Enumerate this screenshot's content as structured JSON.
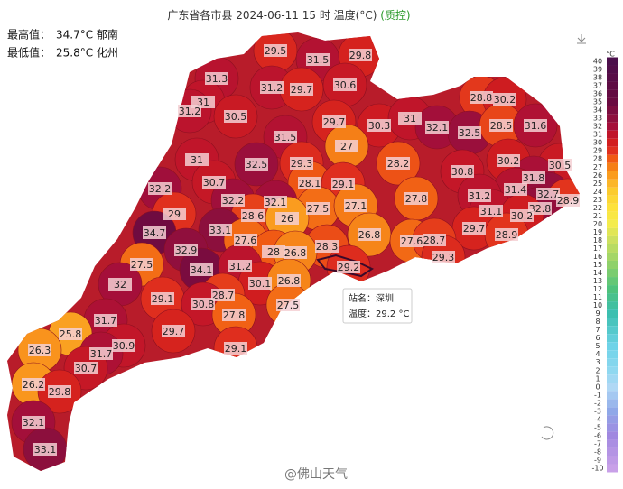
{
  "title": "广东省各市县 2024-06-11 15 时 温度(°C)",
  "title_qc": "(质控)",
  "max": {
    "label": "最高值：",
    "text": "34.7°C 郁南"
  },
  "min": {
    "label": "最低值：",
    "text": "25.8°C 化州"
  },
  "legend": {
    "unit": "°C",
    "ticks": [
      40,
      39,
      38,
      37,
      36,
      35,
      34,
      33,
      32,
      31,
      30,
      29,
      28,
      27,
      26,
      25,
      24,
      23,
      22,
      21,
      20,
      19,
      18,
      17,
      16,
      15,
      14,
      13,
      12,
      11,
      10,
      9,
      8,
      7,
      6,
      5,
      4,
      3,
      2,
      1,
      0,
      -1,
      -2,
      -3,
      -4,
      -5,
      -6,
      -7,
      -8,
      -9,
      -10
    ]
  },
  "stations": [
    {
      "value": 29.5
    },
    {
      "value": 31.5
    },
    {
      "value": 29.8
    },
    {
      "value": 31.3
    },
    {
      "value": 30.6
    },
    {
      "value": 28.8
    },
    {
      "value": 30.2
    },
    {
      "value": 31.2
    },
    {
      "value": 29.7
    },
    {
      "value": 31.0
    },
    {
      "value": 31.2
    },
    {
      "value": 30.5
    },
    {
      "value": 29.7
    },
    {
      "value": 30.3
    },
    {
      "value": 31.0
    },
    {
      "value": 32.1
    },
    {
      "value": 32.5
    },
    {
      "value": 28.5
    },
    {
      "value": 31.6
    },
    {
      "value": 31.5
    },
    {
      "value": 27.0
    },
    {
      "value": 31.0
    },
    {
      "value": 32.5
    },
    {
      "value": 29.3
    },
    {
      "value": 28.2
    },
    {
      "value": 30.2
    },
    {
      "value": 30.5
    },
    {
      "value": 30.8
    },
    {
      "value": 31.8
    },
    {
      "value": 28.1
    },
    {
      "value": 29.1
    },
    {
      "value": 30.7
    },
    {
      "value": 32.2
    },
    {
      "value": 31.4
    },
    {
      "value": 32.7
    },
    {
      "value": 28.9
    },
    {
      "value": 32.2
    },
    {
      "value": 32.1
    },
    {
      "value": 27.5
    },
    {
      "value": 27.1
    },
    {
      "value": 27.8
    },
    {
      "value": 31.2
    },
    {
      "value": 31.1
    },
    {
      "value": 32.8
    },
    {
      "value": 30.2
    },
    {
      "value": 29.0
    },
    {
      "value": 28.6
    },
    {
      "value": 26.0
    },
    {
      "value": 33.1
    },
    {
      "value": 26.8
    },
    {
      "value": 29.7
    },
    {
      "value": 28.9
    },
    {
      "value": 34.7
    },
    {
      "value": 27.6
    },
    {
      "value": 28.3
    },
    {
      "value": 27.6
    },
    {
      "value": 28.7
    },
    {
      "value": 32.9
    },
    {
      "value": 28.0
    },
    {
      "value": 26.8
    },
    {
      "value": 29.3
    },
    {
      "value": 27.5
    },
    {
      "value": 34.1
    },
    {
      "value": 31.2
    },
    {
      "value": 29.2
    },
    {
      "value": 32.0
    },
    {
      "value": 30.1
    },
    {
      "value": 26.8
    },
    {
      "value": 29.1
    },
    {
      "value": 28.7
    },
    {
      "value": 30.8
    },
    {
      "value": 27.5
    },
    {
      "value": 27.8
    },
    {
      "value": 31.7
    },
    {
      "value": 25.8
    },
    {
      "value": 29.7
    },
    {
      "value": 26.3
    },
    {
      "value": 30.9
    },
    {
      "value": 31.7
    },
    {
      "value": 29.1
    },
    {
      "value": 30.7
    },
    {
      "value": 26.2
    },
    {
      "value": 29.8
    },
    {
      "value": 32.1
    },
    {
      "value": 33.1
    }
  ],
  "tooltip": {
    "name": "站名：深圳",
    "temp": "温度：29.2 °C"
  },
  "watermark": "@佛山天气"
}
